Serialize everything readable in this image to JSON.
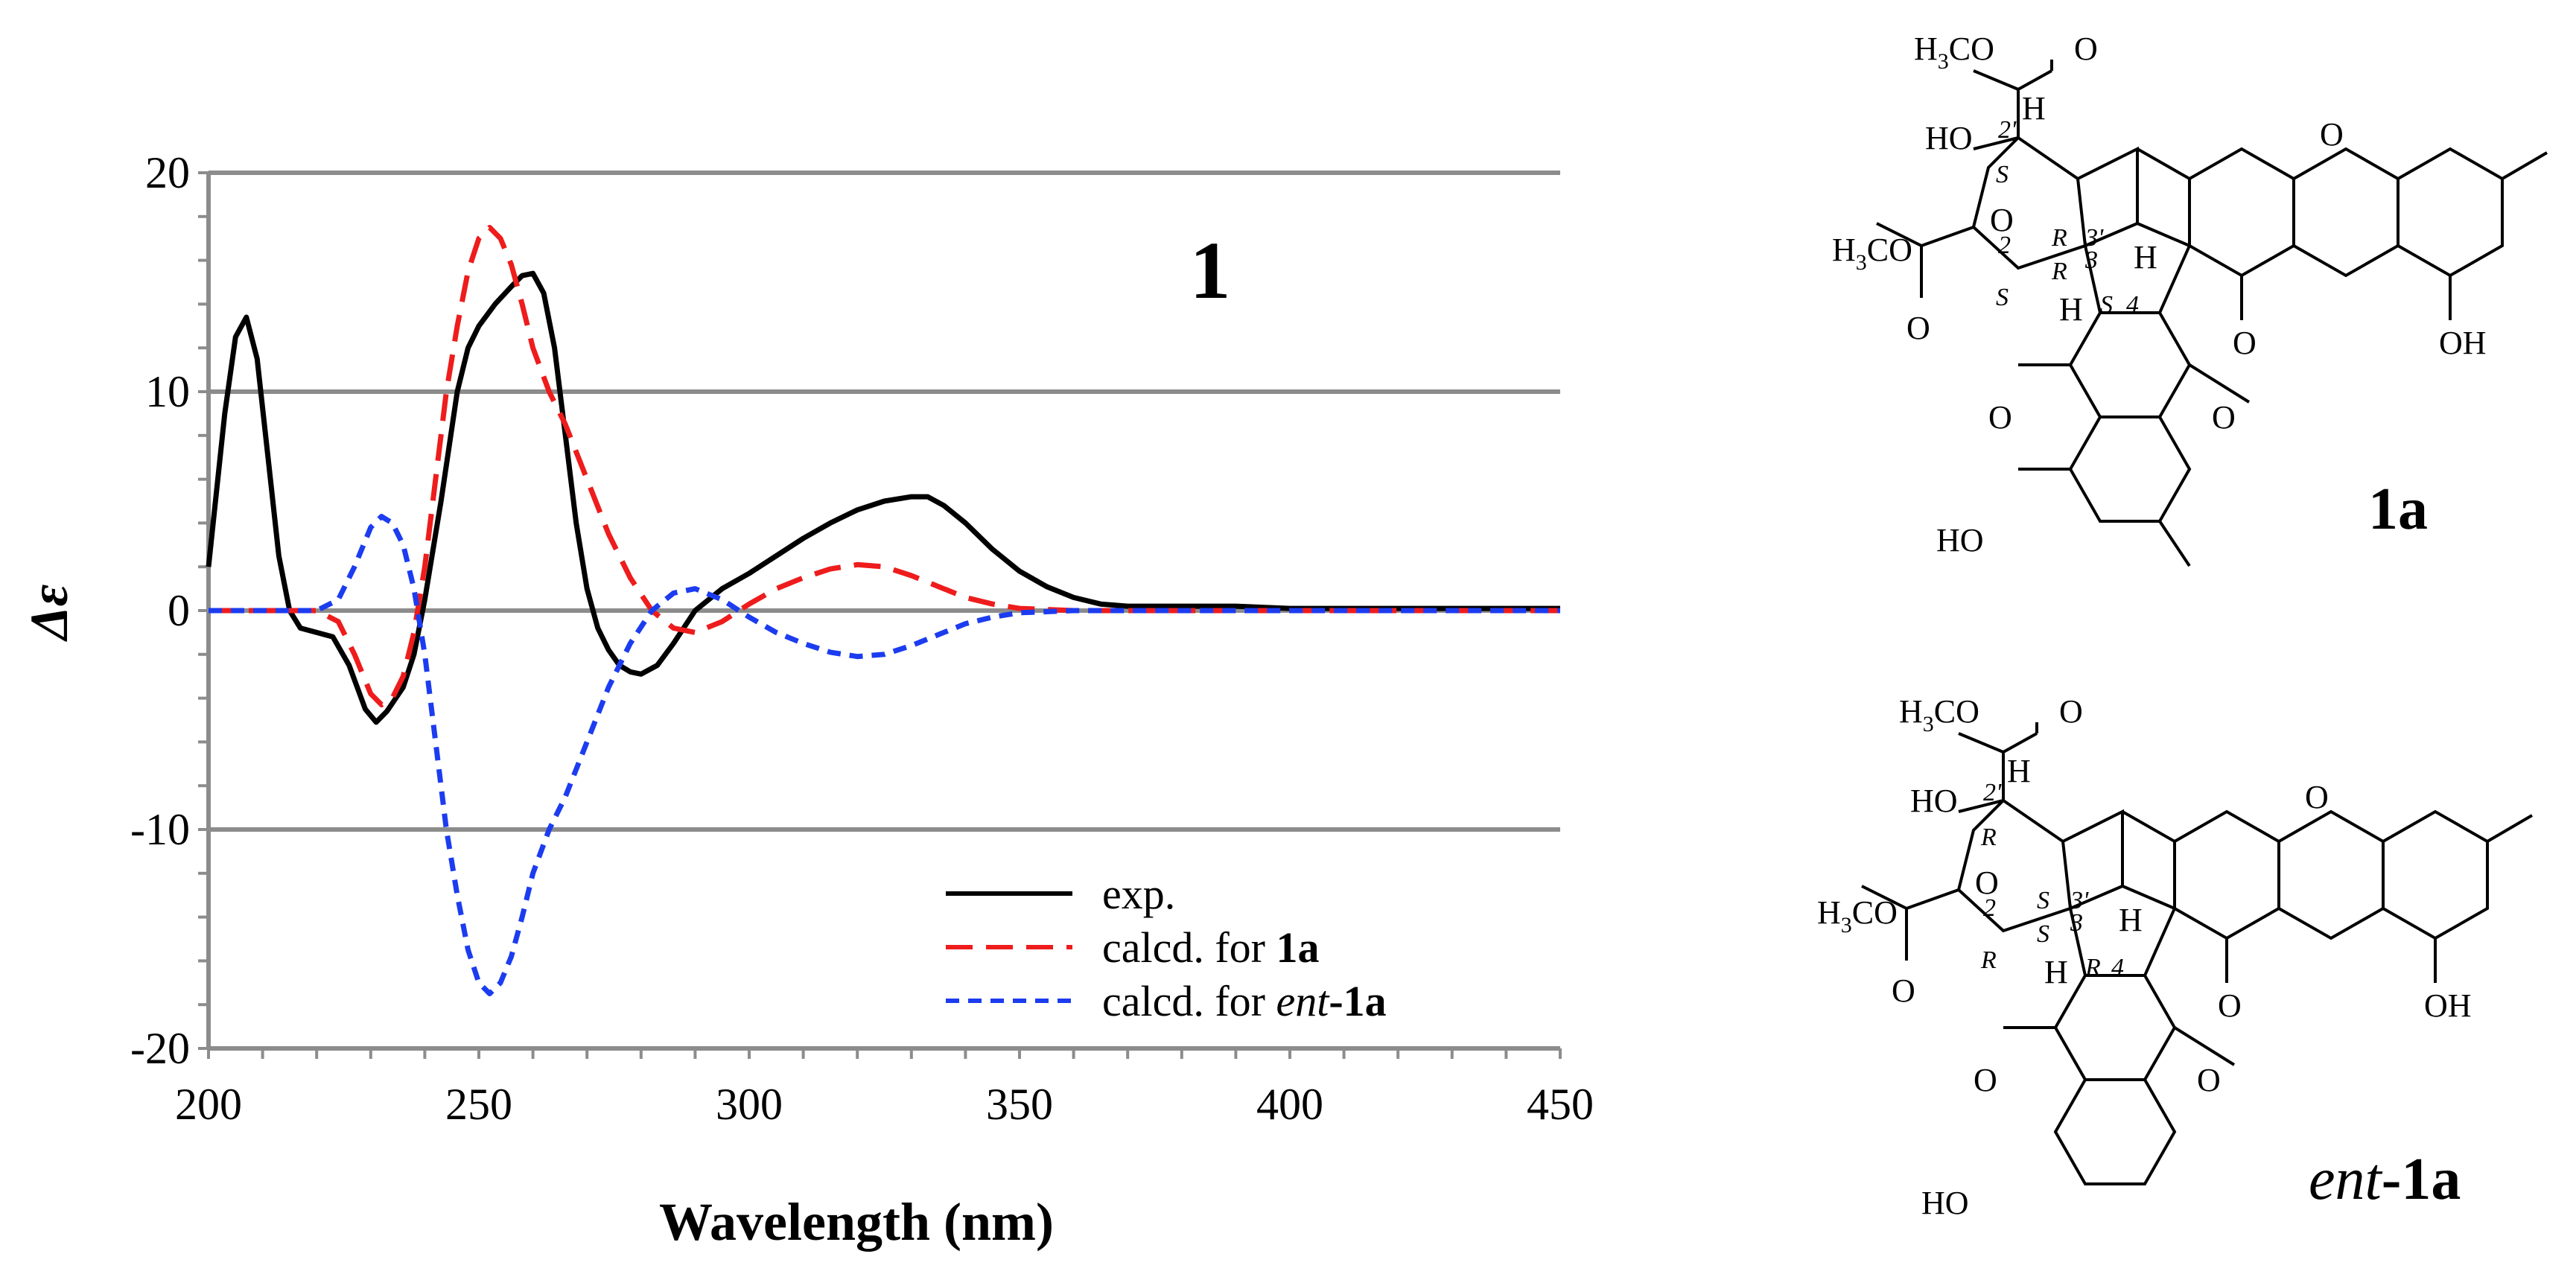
{
  "chart_data": {
    "type": "line",
    "xlabel": "Wavelength (nm)",
    "ylabel": "Δε",
    "xlim": [
      200,
      450
    ],
    "ylim": [
      -20,
      20
    ],
    "x_ticks": [
      200,
      250,
      300,
      350,
      400,
      450
    ],
    "y_ticks": [
      20,
      10,
      0,
      -10,
      -20
    ],
    "annotation": "1",
    "grid": true,
    "series": [
      {
        "name": "exp.",
        "color": "#000000",
        "dash": "solid",
        "x": [
          200,
          203,
          205,
          207,
          209,
          211,
          213,
          215,
          217,
          220,
          223,
          226,
          229,
          231,
          233,
          236,
          238,
          240,
          243,
          246,
          248,
          250,
          253,
          256,
          258,
          260,
          262,
          264,
          266,
          268,
          270,
          272,
          274,
          276,
          278,
          280,
          283,
          286,
          290,
          295,
          300,
          305,
          310,
          315,
          320,
          325,
          330,
          333,
          336,
          340,
          345,
          350,
          355,
          360,
          365,
          370,
          375,
          380,
          390,
          400,
          420,
          450
        ],
        "y": [
          2,
          9,
          12.5,
          13.4,
          11.5,
          7,
          2.5,
          0,
          -0.8,
          -1,
          -1.2,
          -2.5,
          -4.5,
          -5.1,
          -4.6,
          -3.5,
          -2,
          0.5,
          5,
          10,
          12,
          13,
          14,
          14.8,
          15.3,
          15.4,
          14.5,
          12,
          8,
          4,
          1,
          -0.8,
          -1.8,
          -2.5,
          -2.8,
          -2.9,
          -2.5,
          -1.5,
          0,
          1,
          1.7,
          2.5,
          3.3,
          4,
          4.6,
          5,
          5.2,
          5.2,
          4.8,
          4,
          2.8,
          1.8,
          1.1,
          0.6,
          0.3,
          0.2,
          0.2,
          0.2,
          0.2,
          0.1,
          0.1,
          0.1
        ]
      },
      {
        "name": "calcd. for 1a",
        "color": "#ee1c1c",
        "dash": "long",
        "x": [
          200,
          210,
          220,
          224,
          227,
          230,
          232,
          234,
          236,
          238,
          240,
          242,
          244,
          246,
          248,
          250,
          252,
          254,
          256,
          258,
          260,
          263,
          266,
          270,
          274,
          278,
          282,
          286,
          290,
          295,
          300,
          305,
          310,
          315,
          320,
          325,
          330,
          335,
          340,
          345,
          350,
          360,
          380,
          450
        ],
        "y": [
          0,
          0,
          0,
          -0.5,
          -2,
          -3.8,
          -4.3,
          -4,
          -3,
          -1,
          2,
          6,
          10,
          13,
          15.5,
          17,
          17.5,
          17,
          15.8,
          14,
          12,
          10,
          8.5,
          6,
          3.5,
          1.5,
          0,
          -0.8,
          -1,
          -0.5,
          0.3,
          1,
          1.5,
          1.9,
          2.1,
          2,
          1.6,
          1.1,
          0.6,
          0.3,
          0.1,
          0,
          0,
          0
        ]
      },
      {
        "name": "calcd. for ent-1a",
        "color": "#1c3cf0",
        "dash": "short",
        "x": [
          200,
          210,
          220,
          224,
          227,
          230,
          232,
          234,
          236,
          238,
          240,
          242,
          244,
          246,
          248,
          250,
          252,
          254,
          256,
          258,
          260,
          263,
          266,
          270,
          274,
          278,
          282,
          286,
          290,
          295,
          300,
          305,
          310,
          315,
          320,
          325,
          330,
          335,
          340,
          345,
          350,
          360,
          380,
          450
        ],
        "y": [
          0,
          0,
          0,
          0.5,
          2,
          3.8,
          4.3,
          4,
          3,
          1,
          -2,
          -6,
          -10,
          -13,
          -15.5,
          -17,
          -17.5,
          -17,
          -15.8,
          -14,
          -12,
          -10,
          -8.5,
          -6,
          -3.5,
          -1.5,
          0,
          0.8,
          1,
          0.5,
          -0.3,
          -1,
          -1.5,
          -1.9,
          -2.1,
          -2,
          -1.6,
          -1.1,
          -0.6,
          -0.3,
          -0.1,
          0,
          0,
          0
        ]
      }
    ],
    "legend": {
      "placement": "bottom-right",
      "entries": [
        {
          "prefix": "exp.",
          "bold": "",
          "italic": "",
          "suffix": ""
        },
        {
          "prefix": "calcd. for ",
          "bold": "1a",
          "italic": "",
          "suffix": ""
        },
        {
          "prefix": "calcd. for ",
          "italic": "ent",
          "bold": "-1a",
          "suffix": ""
        }
      ]
    }
  },
  "structures": {
    "top_label": "1a",
    "bottom_label_italic": "ent",
    "bottom_label_bold": "-1a",
    "top": {
      "h3co_1": "H",
      "h3co_1_sub": "3",
      "h3co_1_rest": "CO",
      "h3co_2": "H",
      "h3co_2_sub": "3",
      "h3co_2_rest": "CO",
      "o_labels": [
        "O",
        "O",
        "O",
        "O",
        "O",
        "O",
        "O"
      ],
      "oh_labels": [
        "HO",
        "OH",
        "HO"
      ],
      "h_labels": [
        "H",
        "H",
        "H"
      ],
      "locants": [
        "2'",
        "3'",
        "3",
        "2",
        "4"
      ],
      "stereo": [
        "S",
        "R",
        "R",
        "S",
        "S"
      ]
    },
    "bottom": {
      "h3co_1": "H",
      "h3co_1_sub": "3",
      "h3co_1_rest": "CO",
      "h3co_2": "H",
      "h3co_2_sub": "3",
      "h3co_2_rest": "CO",
      "o_labels": [
        "O",
        "O",
        "O",
        "O",
        "O",
        "O",
        "O"
      ],
      "oh_labels": [
        "HO",
        "OH",
        "HO"
      ],
      "h_labels": [
        "H",
        "H",
        "H"
      ],
      "locants": [
        "2'",
        "3'",
        "3",
        "2",
        "4"
      ],
      "stereo": [
        "R",
        "S",
        "S",
        "R",
        "R"
      ]
    }
  }
}
